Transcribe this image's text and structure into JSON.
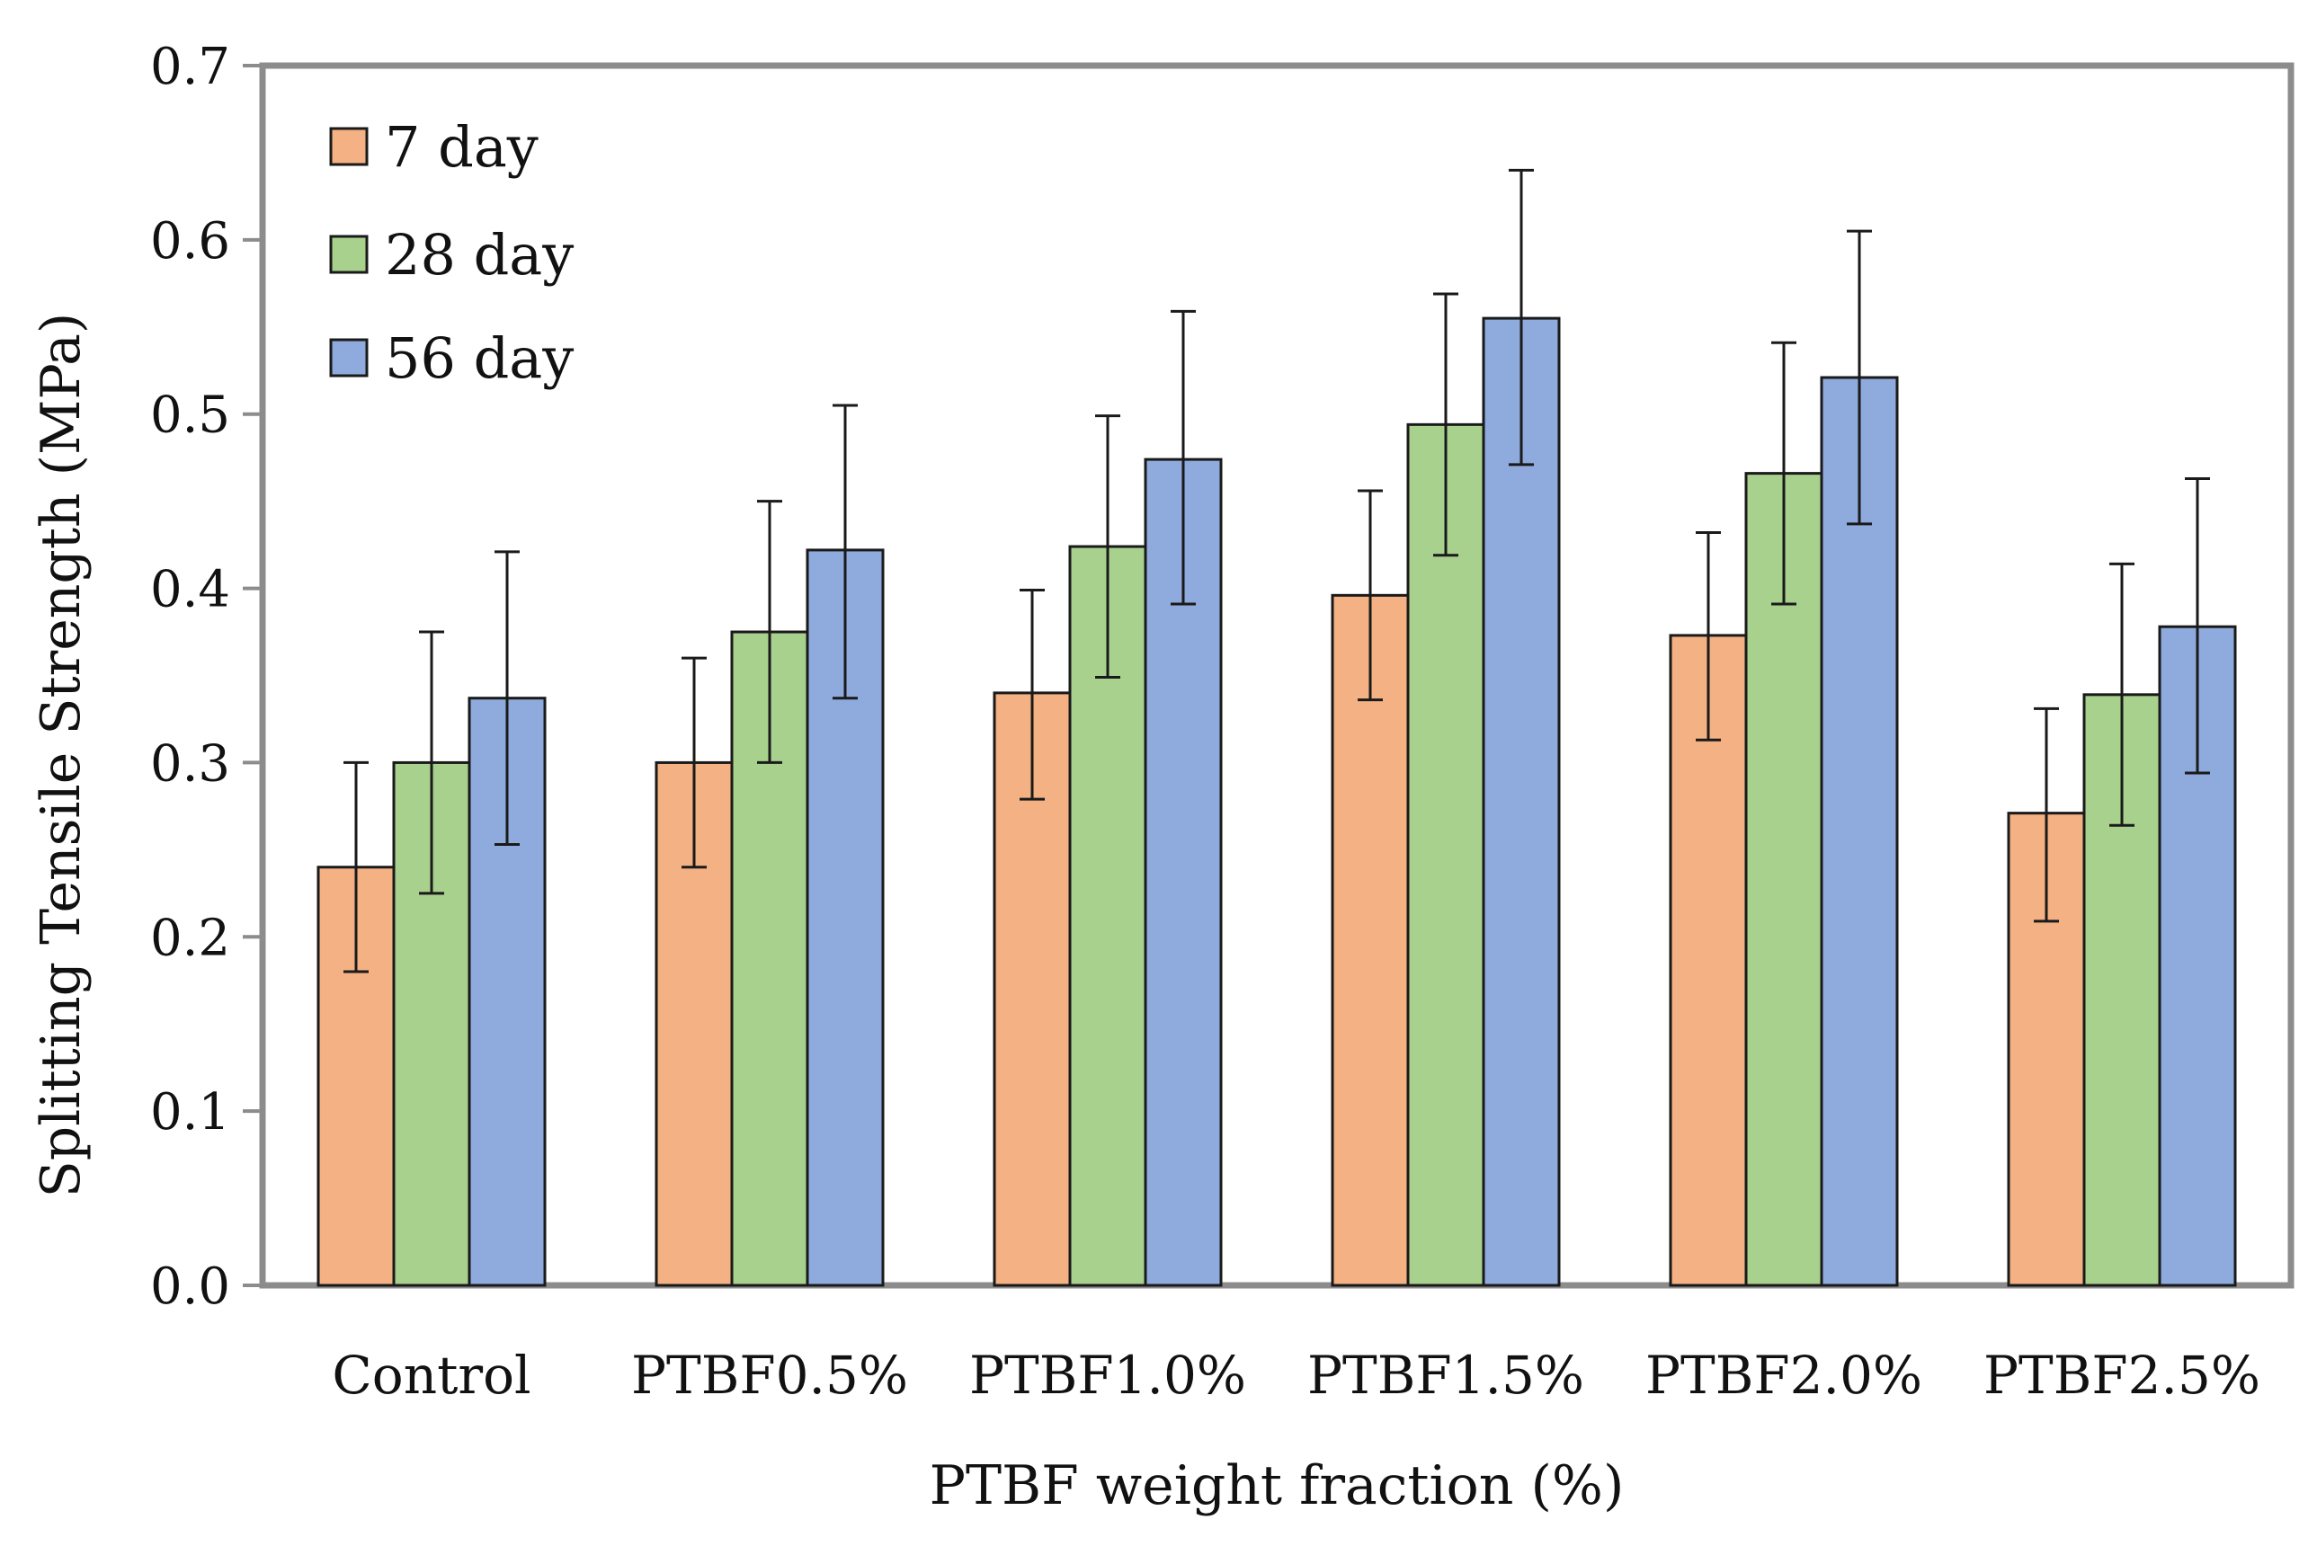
{
  "chart_data": {
    "type": "bar",
    "title": "",
    "xlabel": "PTBF weight fraction (%)",
    "ylabel": "Splitting Tensile Strength (MPa)",
    "ylim": [
      0,
      0.7
    ],
    "yticks": [
      "0.0",
      "0.1",
      "0.2",
      "0.3",
      "0.4",
      "0.5",
      "0.6",
      "0.7"
    ],
    "grid": false,
    "legend_position": "top-left",
    "categories": [
      "Control",
      "PTBF0.5%",
      "PTBF1.0%",
      "PTBF1.5%",
      "PTBF2.0%",
      "PTBF2.5%"
    ],
    "series": [
      {
        "name": "7 day",
        "color": "#F4B183",
        "values": [
          0.24,
          0.3,
          0.34,
          0.396,
          0.373,
          0.271
        ],
        "err_low": [
          0.18,
          0.24,
          0.279,
          0.336,
          0.313,
          0.209
        ],
        "err_high": [
          0.3,
          0.36,
          0.399,
          0.456,
          0.432,
          0.331
        ]
      },
      {
        "name": "28 day",
        "color": "#A9D18E",
        "values": [
          0.3,
          0.375,
          0.424,
          0.494,
          0.466,
          0.339
        ],
        "err_low": [
          0.225,
          0.3,
          0.349,
          0.419,
          0.391,
          0.264
        ],
        "err_high": [
          0.375,
          0.45,
          0.499,
          0.569,
          0.541,
          0.414
        ]
      },
      {
        "name": "56 day",
        "color": "#8FAADC",
        "values": [
          0.337,
          0.422,
          0.474,
          0.555,
          0.521,
          0.378
        ],
        "err_low": [
          0.253,
          0.337,
          0.391,
          0.471,
          0.437,
          0.294
        ],
        "err_high": [
          0.421,
          0.505,
          0.559,
          0.64,
          0.605,
          0.463
        ]
      }
    ]
  }
}
